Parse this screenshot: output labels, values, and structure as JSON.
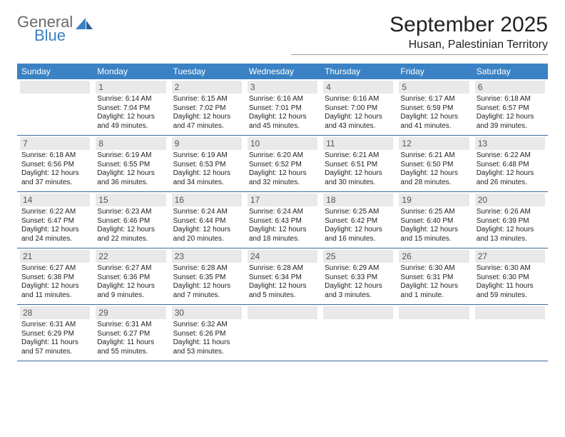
{
  "logo": {
    "word1": "General",
    "word2": "Blue"
  },
  "colors": {
    "brand_blue": "#3a82c4",
    "header_bg": "#3a82c4",
    "header_text": "#ffffff",
    "daynum_bg": "#e9e9e9",
    "daynum_text": "#555555",
    "body_text": "#222222",
    "rule": "#3a6a9a",
    "logo_gray": "#6a6a6a"
  },
  "title": "September 2025",
  "location": "Husan, Palestinian Territory",
  "dow": [
    "Sunday",
    "Monday",
    "Tuesday",
    "Wednesday",
    "Thursday",
    "Friday",
    "Saturday"
  ],
  "weeks": [
    [
      null,
      {
        "n": "1",
        "sr": "Sunrise: 6:14 AM",
        "ss": "Sunset: 7:04 PM",
        "d1": "Daylight: 12 hours",
        "d2": "and 49 minutes."
      },
      {
        "n": "2",
        "sr": "Sunrise: 6:15 AM",
        "ss": "Sunset: 7:02 PM",
        "d1": "Daylight: 12 hours",
        "d2": "and 47 minutes."
      },
      {
        "n": "3",
        "sr": "Sunrise: 6:16 AM",
        "ss": "Sunset: 7:01 PM",
        "d1": "Daylight: 12 hours",
        "d2": "and 45 minutes."
      },
      {
        "n": "4",
        "sr": "Sunrise: 6:16 AM",
        "ss": "Sunset: 7:00 PM",
        "d1": "Daylight: 12 hours",
        "d2": "and 43 minutes."
      },
      {
        "n": "5",
        "sr": "Sunrise: 6:17 AM",
        "ss": "Sunset: 6:59 PM",
        "d1": "Daylight: 12 hours",
        "d2": "and 41 minutes."
      },
      {
        "n": "6",
        "sr": "Sunrise: 6:18 AM",
        "ss": "Sunset: 6:57 PM",
        "d1": "Daylight: 12 hours",
        "d2": "and 39 minutes."
      }
    ],
    [
      {
        "n": "7",
        "sr": "Sunrise: 6:18 AM",
        "ss": "Sunset: 6:56 PM",
        "d1": "Daylight: 12 hours",
        "d2": "and 37 minutes."
      },
      {
        "n": "8",
        "sr": "Sunrise: 6:19 AM",
        "ss": "Sunset: 6:55 PM",
        "d1": "Daylight: 12 hours",
        "d2": "and 36 minutes."
      },
      {
        "n": "9",
        "sr": "Sunrise: 6:19 AM",
        "ss": "Sunset: 6:53 PM",
        "d1": "Daylight: 12 hours",
        "d2": "and 34 minutes."
      },
      {
        "n": "10",
        "sr": "Sunrise: 6:20 AM",
        "ss": "Sunset: 6:52 PM",
        "d1": "Daylight: 12 hours",
        "d2": "and 32 minutes."
      },
      {
        "n": "11",
        "sr": "Sunrise: 6:21 AM",
        "ss": "Sunset: 6:51 PM",
        "d1": "Daylight: 12 hours",
        "d2": "and 30 minutes."
      },
      {
        "n": "12",
        "sr": "Sunrise: 6:21 AM",
        "ss": "Sunset: 6:50 PM",
        "d1": "Daylight: 12 hours",
        "d2": "and 28 minutes."
      },
      {
        "n": "13",
        "sr": "Sunrise: 6:22 AM",
        "ss": "Sunset: 6:48 PM",
        "d1": "Daylight: 12 hours",
        "d2": "and 26 minutes."
      }
    ],
    [
      {
        "n": "14",
        "sr": "Sunrise: 6:22 AM",
        "ss": "Sunset: 6:47 PM",
        "d1": "Daylight: 12 hours",
        "d2": "and 24 minutes."
      },
      {
        "n": "15",
        "sr": "Sunrise: 6:23 AM",
        "ss": "Sunset: 6:46 PM",
        "d1": "Daylight: 12 hours",
        "d2": "and 22 minutes."
      },
      {
        "n": "16",
        "sr": "Sunrise: 6:24 AM",
        "ss": "Sunset: 6:44 PM",
        "d1": "Daylight: 12 hours",
        "d2": "and 20 minutes."
      },
      {
        "n": "17",
        "sr": "Sunrise: 6:24 AM",
        "ss": "Sunset: 6:43 PM",
        "d1": "Daylight: 12 hours",
        "d2": "and 18 minutes."
      },
      {
        "n": "18",
        "sr": "Sunrise: 6:25 AM",
        "ss": "Sunset: 6:42 PM",
        "d1": "Daylight: 12 hours",
        "d2": "and 16 minutes."
      },
      {
        "n": "19",
        "sr": "Sunrise: 6:25 AM",
        "ss": "Sunset: 6:40 PM",
        "d1": "Daylight: 12 hours",
        "d2": "and 15 minutes."
      },
      {
        "n": "20",
        "sr": "Sunrise: 6:26 AM",
        "ss": "Sunset: 6:39 PM",
        "d1": "Daylight: 12 hours",
        "d2": "and 13 minutes."
      }
    ],
    [
      {
        "n": "21",
        "sr": "Sunrise: 6:27 AM",
        "ss": "Sunset: 6:38 PM",
        "d1": "Daylight: 12 hours",
        "d2": "and 11 minutes."
      },
      {
        "n": "22",
        "sr": "Sunrise: 6:27 AM",
        "ss": "Sunset: 6:36 PM",
        "d1": "Daylight: 12 hours",
        "d2": "and 9 minutes."
      },
      {
        "n": "23",
        "sr": "Sunrise: 6:28 AM",
        "ss": "Sunset: 6:35 PM",
        "d1": "Daylight: 12 hours",
        "d2": "and 7 minutes."
      },
      {
        "n": "24",
        "sr": "Sunrise: 6:28 AM",
        "ss": "Sunset: 6:34 PM",
        "d1": "Daylight: 12 hours",
        "d2": "and 5 minutes."
      },
      {
        "n": "25",
        "sr": "Sunrise: 6:29 AM",
        "ss": "Sunset: 6:33 PM",
        "d1": "Daylight: 12 hours",
        "d2": "and 3 minutes."
      },
      {
        "n": "26",
        "sr": "Sunrise: 6:30 AM",
        "ss": "Sunset: 6:31 PM",
        "d1": "Daylight: 12 hours",
        "d2": "and 1 minute."
      },
      {
        "n": "27",
        "sr": "Sunrise: 6:30 AM",
        "ss": "Sunset: 6:30 PM",
        "d1": "Daylight: 11 hours",
        "d2": "and 59 minutes."
      }
    ],
    [
      {
        "n": "28",
        "sr": "Sunrise: 6:31 AM",
        "ss": "Sunset: 6:29 PM",
        "d1": "Daylight: 11 hours",
        "d2": "and 57 minutes."
      },
      {
        "n": "29",
        "sr": "Sunrise: 6:31 AM",
        "ss": "Sunset: 6:27 PM",
        "d1": "Daylight: 11 hours",
        "d2": "and 55 minutes."
      },
      {
        "n": "30",
        "sr": "Sunrise: 6:32 AM",
        "ss": "Sunset: 6:26 PM",
        "d1": "Daylight: 11 hours",
        "d2": "and 53 minutes."
      },
      null,
      null,
      null,
      null
    ]
  ]
}
